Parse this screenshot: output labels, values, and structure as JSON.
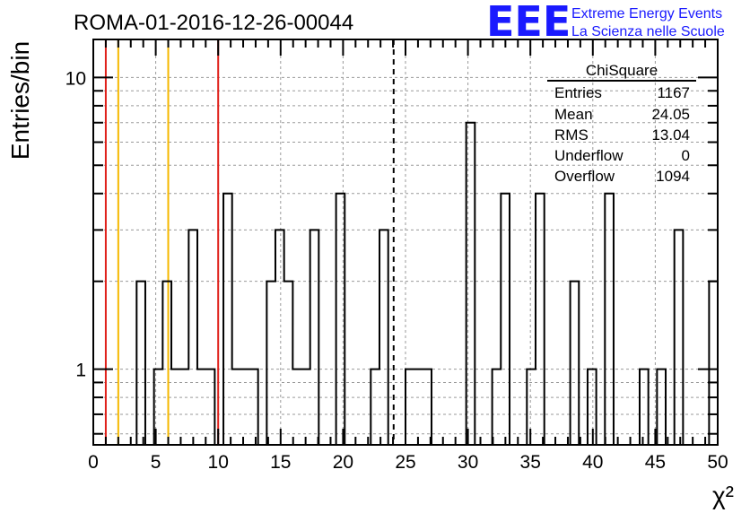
{
  "title": "ROMA-01-2016-12-26-00044",
  "logo": {
    "mark": "EEE",
    "line1": "Extreme Energy Events",
    "line2": "La Scienza nelle Scuole",
    "color": "#1a1aff"
  },
  "stats": {
    "name": "ChiSquare",
    "rows": [
      {
        "label": "Entries",
        "value": "1167"
      },
      {
        "label": "Mean",
        "value": "24.05"
      },
      {
        "label": "RMS",
        "value": "13.04"
      },
      {
        "label": "Underflow",
        "value": "0"
      },
      {
        "label": "Overflow",
        "value": "1094"
      }
    ]
  },
  "chart_data": {
    "type": "bar",
    "style": "histogram-step",
    "xlabel": "χ²",
    "ylabel": "Entries/bin",
    "xlim": [
      0,
      50
    ],
    "ylim": [
      0.55,
      13.5
    ],
    "yscale": "log",
    "grid": true,
    "bin_width": 0.6944,
    "x_ticks": [
      "0",
      "5",
      "10",
      "15",
      "20",
      "25",
      "30",
      "35",
      "40",
      "45",
      "50"
    ],
    "y_ticks": [
      "1",
      "10"
    ],
    "bins": [
      {
        "x": 3.47,
        "y": 2
      },
      {
        "x": 4.86,
        "y": 1
      },
      {
        "x": 5.56,
        "y": 2
      },
      {
        "x": 6.25,
        "y": 1
      },
      {
        "x": 6.94,
        "y": 1
      },
      {
        "x": 7.64,
        "y": 3
      },
      {
        "x": 8.33,
        "y": 1
      },
      {
        "x": 9.03,
        "y": 1
      },
      {
        "x": 10.42,
        "y": 4
      },
      {
        "x": 11.11,
        "y": 1
      },
      {
        "x": 11.81,
        "y": 1
      },
      {
        "x": 12.5,
        "y": 1
      },
      {
        "x": 13.89,
        "y": 2
      },
      {
        "x": 14.58,
        "y": 3
      },
      {
        "x": 15.28,
        "y": 2
      },
      {
        "x": 15.97,
        "y": 1
      },
      {
        "x": 16.67,
        "y": 1
      },
      {
        "x": 17.36,
        "y": 3
      },
      {
        "x": 19.44,
        "y": 4
      },
      {
        "x": 22.22,
        "y": 1
      },
      {
        "x": 22.92,
        "y": 3
      },
      {
        "x": 25.0,
        "y": 1
      },
      {
        "x": 25.69,
        "y": 1
      },
      {
        "x": 26.39,
        "y": 1
      },
      {
        "x": 29.86,
        "y": 7
      },
      {
        "x": 31.94,
        "y": 1
      },
      {
        "x": 32.64,
        "y": 4
      },
      {
        "x": 34.72,
        "y": 1
      },
      {
        "x": 35.42,
        "y": 4
      },
      {
        "x": 38.19,
        "y": 2
      },
      {
        "x": 39.58,
        "y": 1
      },
      {
        "x": 40.97,
        "y": 4
      },
      {
        "x": 43.75,
        "y": 1
      },
      {
        "x": 45.14,
        "y": 1
      },
      {
        "x": 46.53,
        "y": 3
      },
      {
        "x": 49.31,
        "y": 2
      }
    ],
    "vertical_lines": [
      {
        "x": 1,
        "color": "#e0201a",
        "style": "solid"
      },
      {
        "x": 2,
        "color": "#f5b800",
        "style": "solid"
      },
      {
        "x": 6,
        "color": "#f5b800",
        "style": "solid"
      },
      {
        "x": 10,
        "color": "#e0201a",
        "style": "solid"
      },
      {
        "x": 24.05,
        "color": "#000000",
        "style": "dashed"
      }
    ]
  }
}
